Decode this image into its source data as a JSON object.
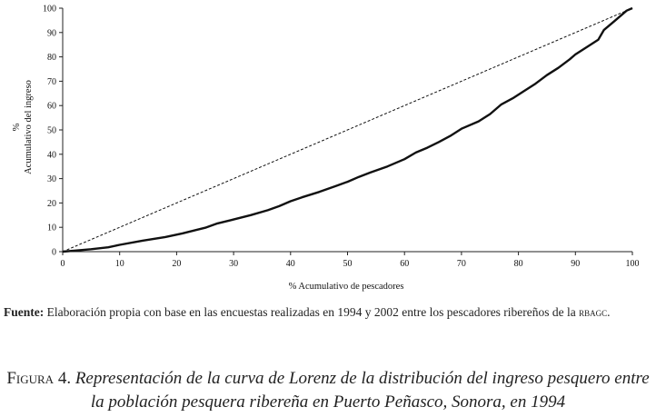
{
  "chart_data": {
    "type": "line",
    "xlabel": "% Acumulativo de pescadores",
    "ylabel_prefix": "%",
    "ylabel": "Acumulativo del ingreso",
    "xlim": [
      0,
      100
    ],
    "ylim": [
      0,
      100
    ],
    "x_ticks": [
      0,
      10,
      20,
      30,
      40,
      50,
      60,
      70,
      80,
      90,
      100
    ],
    "y_ticks": [
      0,
      10,
      20,
      30,
      40,
      50,
      60,
      70,
      80,
      90,
      100
    ],
    "series": [
      {
        "style": "dashed",
        "x": [
          0,
          100
        ],
        "y": [
          0,
          100
        ]
      },
      {
        "style": "solid",
        "x": [
          0,
          2,
          5,
          8,
          10,
          14,
          18,
          21,
          25,
          27,
          30,
          33,
          36,
          38,
          40,
          42,
          45,
          48,
          50,
          52,
          54,
          57,
          60,
          62,
          64,
          66,
          68,
          70,
          73,
          75,
          77,
          79,
          81,
          83,
          85,
          87,
          89,
          90,
          92,
          94,
          95,
          97,
          99,
          100
        ],
        "y": [
          0,
          0.4,
          1,
          1.8,
          2.8,
          4.5,
          6,
          7.5,
          9.8,
          11.5,
          13.2,
          15,
          17,
          18.7,
          20.7,
          22.3,
          24.5,
          27,
          28.7,
          30.7,
          32.5,
          35,
          38,
          40.7,
          42.7,
          45,
          47.5,
          50.5,
          53.5,
          56.5,
          60.5,
          63,
          66,
          69,
          72.5,
          75.5,
          79,
          81,
          84,
          87,
          91,
          95,
          99,
          100
        ]
      }
    ]
  },
  "source_note": {
    "label": "Fuente:",
    "text": " Elaboración propia con base en las encuestas realizadas en 1994 y 2002 entre los pescadores ribereños de la ",
    "acronym": "rbagc",
    "end": "."
  },
  "caption": {
    "figure_label": "Figura 4.",
    "text": "Representación de la curva de Lorenz de la distribución del ingreso pesquero entre la población pesquera ribereña en Puerto Peñasco, Sonora, en 1994"
  }
}
